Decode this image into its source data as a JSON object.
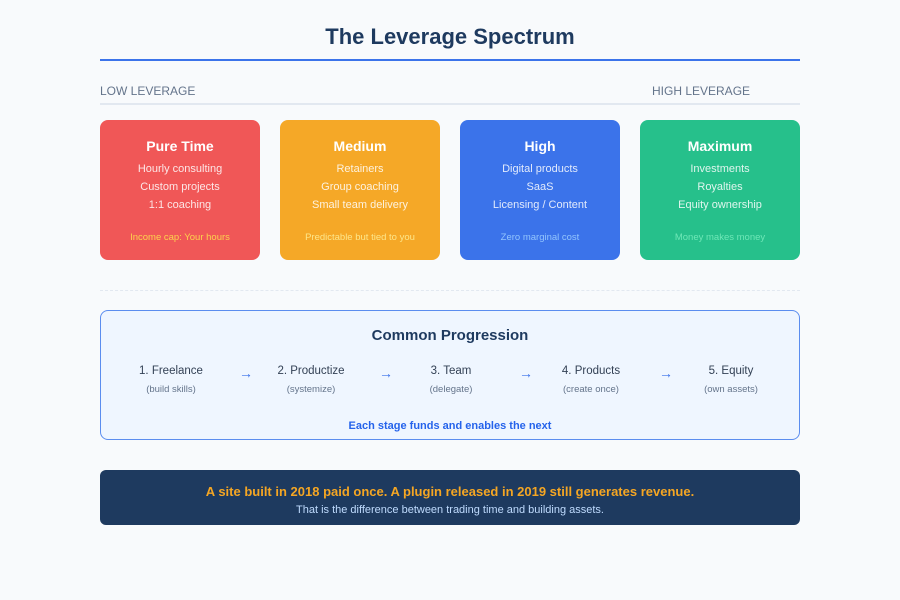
{
  "title": "The Leverage Spectrum",
  "axis": {
    "low": "LOW LEVERAGE",
    "high": "HIGH LEVERAGE"
  },
  "cards": [
    {
      "title": "Pure Time",
      "items": [
        "Hourly consulting",
        "Custom projects",
        "1:1 coaching"
      ],
      "note": "Income cap: Your hours",
      "color": "#f05757",
      "note_color": "#fcd34d"
    },
    {
      "title": "Medium",
      "items": [
        "Retainers",
        "Group coaching",
        "Small team delivery"
      ],
      "note": "Predictable but tied to you",
      "color": "#f5a827",
      "note_color": "#fde68a"
    },
    {
      "title": "High",
      "items": [
        "Digital products",
        "SaaS",
        "Licensing / Content"
      ],
      "note": "Zero marginal cost",
      "color": "#3b73ea",
      "note_color": "#93c5fd"
    },
    {
      "title": "Maximum",
      "items": [
        "Investments",
        "Royalties",
        "Equity ownership"
      ],
      "note": "Money makes money",
      "color": "#26c08b",
      "note_color": "#6ee7b7"
    }
  ],
  "progression": {
    "title": "Common Progression",
    "stages": [
      {
        "name": "1. Freelance",
        "sub": "(build skills)"
      },
      {
        "name": "2. Productize",
        "sub": "(systemize)"
      },
      {
        "name": "3. Team",
        "sub": "(delegate)"
      },
      {
        "name": "4. Products",
        "sub": "(create once)"
      },
      {
        "name": "5. Equity",
        "sub": "(own assets)"
      }
    ],
    "arrow": "→",
    "footer": "Each stage funds and enables the next"
  },
  "banner": {
    "headline": "A site built in 2018 paid once. A plugin released in 2019 still generates revenue.",
    "sub": "That is the difference between trading time and building assets."
  }
}
